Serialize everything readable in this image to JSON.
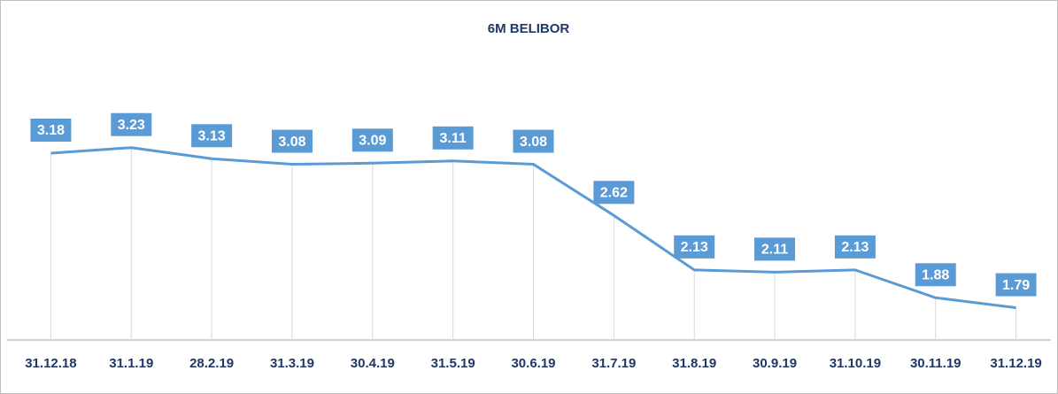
{
  "chart_data": {
    "type": "line",
    "title": "6M BELIBOR",
    "categories": [
      "31.12.18",
      "31.1.19",
      "28.2.19",
      "31.3.19",
      "30.4.19",
      "31.5.19",
      "30.6.19",
      "31.7.19",
      "31.8.19",
      "30.9.19",
      "31.10.19",
      "30.11.19",
      "31.12.19"
    ],
    "series": [
      {
        "name": "6M BELIBOR",
        "color": "#5b9bd5",
        "values": [
          3.18,
          3.23,
          3.13,
          3.08,
          3.09,
          3.11,
          3.08,
          2.62,
          2.13,
          2.11,
          2.13,
          1.88,
          1.79
        ]
      }
    ],
    "ylim": [
      1.5,
      4
    ]
  }
}
